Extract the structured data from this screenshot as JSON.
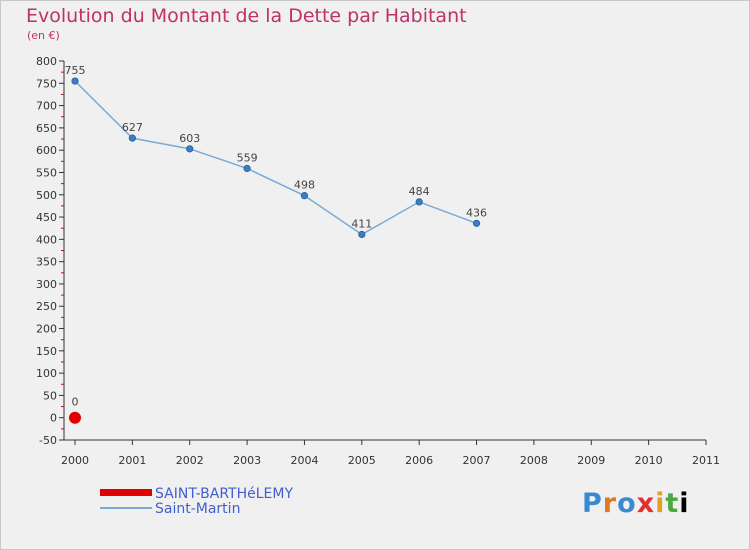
{
  "header": {
    "title": "Evolution du Montant de la Dette par Habitant",
    "subtitle": "(en €)"
  },
  "logo": {
    "text": [
      "P",
      "r",
      "o",
      "x",
      "i",
      "t",
      "i"
    ]
  },
  "colors": {
    "series_saint_barthelemy": "#e00000",
    "series_saint_martin": "#7aaad8",
    "point_saint_martin": "#3a7ec8",
    "axis": "#333333",
    "tick_red": "#e00000"
  },
  "chart_data": {
    "type": "line",
    "ylim": [
      -50,
      800
    ],
    "yticks": [
      -50,
      0,
      50,
      100,
      150,
      200,
      250,
      300,
      350,
      400,
      450,
      500,
      550,
      600,
      650,
      700,
      750,
      800
    ],
    "xticks": [
      2000,
      2001,
      2002,
      2003,
      2004,
      2005,
      2006,
      2007,
      2008,
      2009,
      2010,
      2011
    ],
    "xlim": [
      2000,
      2011
    ],
    "legend_position": "bottom-left",
    "series": [
      {
        "name": "SAINT-BARTHéLEMY",
        "x": [
          2000
        ],
        "values": [
          0
        ],
        "labels": [
          "0"
        ]
      },
      {
        "name": "Saint-Martin",
        "x": [
          2000,
          2001,
          2002,
          2003,
          2004,
          2005,
          2006,
          2007
        ],
        "values": [
          755,
          627,
          603,
          559,
          498,
          411,
          484,
          436
        ],
        "labels": [
          "755",
          "627",
          "603",
          "559",
          "498",
          "411",
          "484",
          "436"
        ]
      }
    ]
  }
}
